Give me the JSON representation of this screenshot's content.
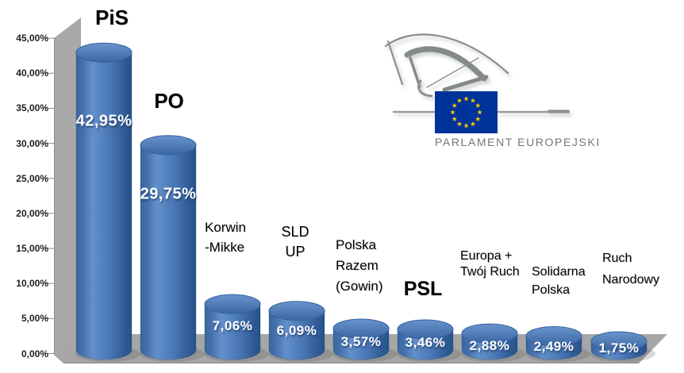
{
  "chart_data": {
    "type": "bar",
    "subtype": "3d-cylinder",
    "title": "",
    "xlabel": "",
    "ylabel": "",
    "grid": false,
    "legend": null,
    "categories": [
      "PiS",
      "PO",
      "Korwin -Mikke",
      "SLD UP",
      "Polska Razem (Gowin)",
      "PSL",
      "Europa + Twój Ruch",
      "Solidarna Polska",
      "Ruch Narodowy"
    ],
    "category_lines": [
      [
        "PiS"
      ],
      [
        "PO"
      ],
      [
        "Korwin",
        "-Mikke"
      ],
      [
        "SLD",
        "UP"
      ],
      [
        "Polska",
        "Razem",
        "(Gowin)"
      ],
      [
        "PSL"
      ],
      [
        "Europa +",
        "Twój Ruch"
      ],
      [
        "Solidarna",
        "Polska"
      ],
      [
        "Ruch",
        "Narodowy"
      ]
    ],
    "values": [
      42.95,
      29.75,
      7.06,
      6.09,
      3.57,
      3.46,
      2.88,
      2.49,
      1.75
    ],
    "value_labels": [
      "42,95%",
      "29,75%",
      "7,06%",
      "6,09%",
      "3,57%",
      "3,46%",
      "2,88%",
      "2,49%",
      "1,75%"
    ],
    "y_axis": {
      "min": 0,
      "max": 45,
      "step": 5,
      "tick_labels": [
        "0,00%",
        "5,00%",
        "10,00%",
        "15,00%",
        "20,00%",
        "25,00%",
        "30,00%",
        "35,00%",
        "40,00%",
        "45,00%"
      ]
    },
    "colors": {
      "bar_main": "#4a78b6",
      "bar_edge_dark": "#27528b",
      "bar_highlight": "#6390cb",
      "floor": "#a6a6a6",
      "wall": "#a9a9a9",
      "axis": "#8e8e8e",
      "tick_text": "#1f1f1f",
      "value_text": "#ffffff",
      "category_text": "#000000"
    }
  },
  "logo": {
    "caption": "PARLAMENT EUROPEJSKI",
    "flag_color": "#003399",
    "star_color": "#ffcc00",
    "sketch_color": "#8c9191"
  }
}
